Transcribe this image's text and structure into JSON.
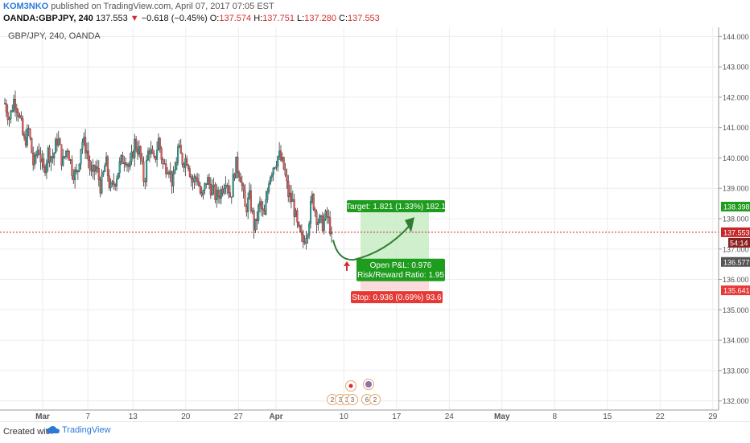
{
  "header": {
    "author": "KOM3NKO",
    "published_text": "published on TradingView.com, April 07, 2017 07:05 EST",
    "symbol": "OANDA:GBPJPY, 240",
    "last": "137.553",
    "change": "−0.618 (−0.45%)",
    "o_label": "O:",
    "o_value": "137.574",
    "h_label": "H:",
    "h_value": "137.751",
    "l_label": "L:",
    "l_value": "137.280",
    "c_label": "C:",
    "c_value": "137.553"
  },
  "chart_overlay": {
    "symbol_label": "GBP/JPY, 240, OANDA"
  },
  "footer": {
    "created_with": "Created with",
    "brand": "TradingView"
  },
  "colors": {
    "up": "#26a69a",
    "down": "#ef5350",
    "target_zone": "#c8ecc4",
    "stop_zone": "#f9d4d4",
    "target_label": "#1e9c1e",
    "stop_label": "#e53935",
    "price_line": "#c62828",
    "grid": "#ececec",
    "arrow": "#2e7d32",
    "marker": "#d32f2f"
  },
  "chart_data": {
    "type": "candlestick",
    "y_axis": {
      "range": [
        131.7,
        144.3
      ],
      "ticks": [
        "132.000",
        "133.000",
        "134.000",
        "135.000",
        "136.000",
        "137.000",
        "138.000",
        "139.000",
        "140.000",
        "141.000",
        "142.000",
        "143.000",
        "144.000"
      ]
    },
    "x_axis": {
      "ticks": [
        {
          "label": "Mar",
          "bold": true
        },
        {
          "label": "7"
        },
        {
          "label": "13"
        },
        {
          "label": "20"
        },
        {
          "label": "27"
        },
        {
          "label": "Apr",
          "bold": true
        },
        {
          "label": "10"
        },
        {
          "label": "17"
        },
        {
          "label": "24"
        },
        {
          "label": "May",
          "bold": true
        },
        {
          "label": "8"
        },
        {
          "label": "15"
        },
        {
          "label": "22"
        },
        {
          "label": "29"
        }
      ]
    },
    "price_path": [
      141.8,
      141.3,
      142.0,
      141.4,
      140.5,
      140.9,
      139.7,
      140.4,
      139.5,
      140.2,
      140.0,
      140.7,
      139.8,
      140.4,
      139.6,
      139.4,
      140.6,
      140.3,
      139.4,
      139.7,
      139.0,
      139.9,
      138.9,
      139.3,
      139.8,
      140.1,
      139.6,
      140.5,
      140.2,
      139.2,
      140.4,
      139.8,
      140.6,
      139.7,
      139.8,
      139.1,
      140.3,
      139.9,
      140.0,
      139.2,
      139.4,
      138.6,
      139.3,
      139.0,
      138.7,
      138.9,
      139.4,
      138.7,
      139.8,
      139.5,
      138.3,
      138.7,
      137.6,
      138.5,
      138.0,
      139.4,
      139.8,
      140.1,
      139.7,
      138.8,
      138.5,
      137.6,
      137.2,
      137.7,
      138.7,
      138.0,
      137.8,
      138.1,
      137.55
    ],
    "current_price": {
      "value": "137.553",
      "countdown": "54:14"
    },
    "position": {
      "entry": "136.577",
      "target": "138.398",
      "stop": "135.641",
      "target_label": "Target: 1.821 (1.33%) 182.1",
      "stop_label": "Stop: 0.936 (0.69%) 93.6",
      "pnl_label": "Open P&L: 0.976",
      "rr_label": "Risk/Reward Ratio: 1.95"
    },
    "events": [
      "2",
      "3",
      "3",
      "3",
      "6",
      "2"
    ]
  }
}
